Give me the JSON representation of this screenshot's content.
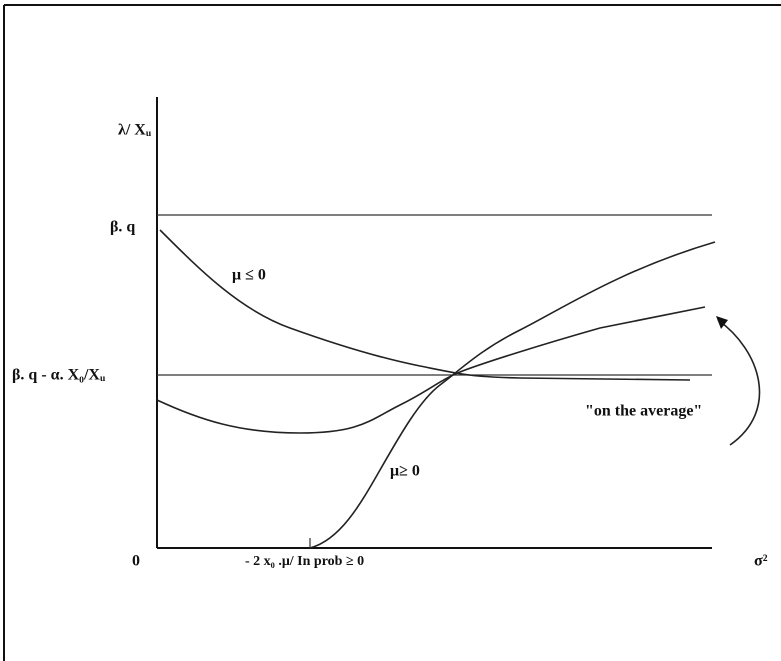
{
  "diagram": {
    "y_axis_label": "λ/ Xᵤ",
    "level_high": "β. q",
    "level_mid": "β. q - α. X₀/Xᵤ",
    "origin": "0",
    "x_marker": "- 2 x₀ .μ/ In prob ≥ 0",
    "x_axis_label": "σ²",
    "curve_negative": "μ ≤ 0",
    "curve_positive": "μ≥ 0",
    "annotation": "\"on the average\""
  }
}
